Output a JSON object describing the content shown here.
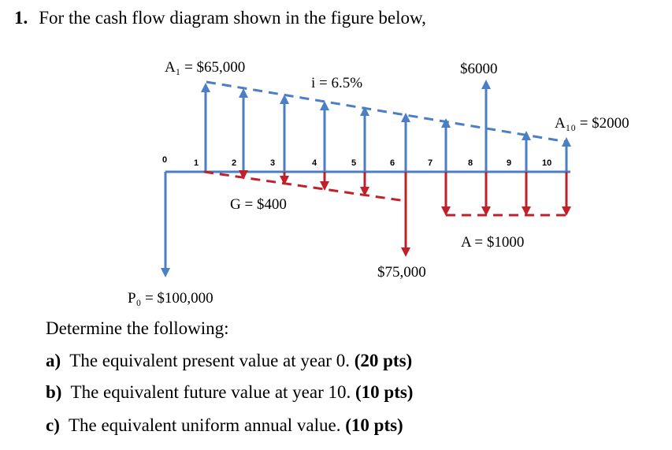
{
  "question": {
    "number": "1.",
    "text": "For the cash flow diagram shown in the figure below,"
  },
  "diagram": {
    "labels": {
      "a1": "A₁ = $65,000",
      "interest": "i = 6.5%",
      "six_thousand": "$6000",
      "a10": "A₁₀ = $2000",
      "gradient": "G = $400",
      "annual": "A = $1000",
      "seventy_five": "$75,000",
      "p0": "P₀ = $100,000"
    },
    "years": [
      "0",
      "1",
      "2",
      "3",
      "4",
      "5",
      "6",
      "7",
      "8",
      "9",
      "10"
    ],
    "colors": {
      "blue": "#4a7ec5",
      "red": "#c0202a"
    }
  },
  "prompt": "Determine the following:",
  "parts": [
    {
      "letter": "a)",
      "text": "The equivalent present value at year 0.",
      "pts": "(20 pts)"
    },
    {
      "letter": "b)",
      "text": "The equivalent future value at year 10.",
      "pts": "(10 pts)"
    },
    {
      "letter": "c)",
      "text": "The equivalent uniform annual value.",
      "pts": "(10 pts)"
    }
  ]
}
